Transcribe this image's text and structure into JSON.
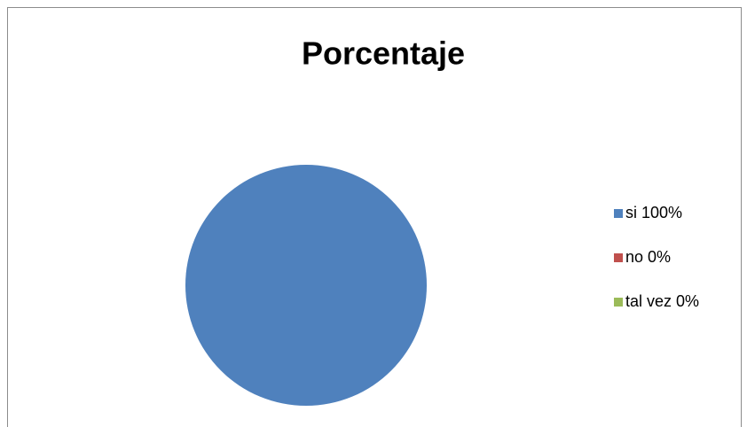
{
  "chart_data": {
    "type": "pie",
    "title": "Porcentaje",
    "categories": [
      "si 100%",
      "no 0%",
      "tal vez 0%"
    ],
    "values": [
      100,
      0,
      0
    ],
    "colors": [
      "#4f81bd",
      "#c0504d",
      "#9bbb59"
    ],
    "legend": "right"
  }
}
